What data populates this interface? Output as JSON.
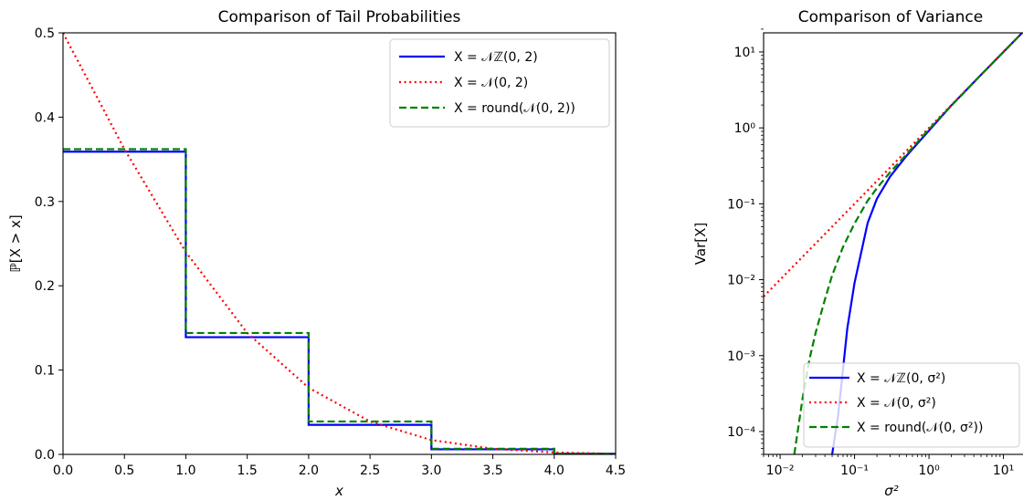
{
  "chart_data": [
    {
      "type": "line",
      "title": "Comparison of Tail Probabilities",
      "xlabel": "x",
      "ylabel": "ℙ[X > x]",
      "xlim": [
        0,
        4.5
      ],
      "ylim": [
        0,
        0.5
      ],
      "xticks": [
        "0.0",
        "0.5",
        "1.0",
        "1.5",
        "2.0",
        "2.5",
        "3.0",
        "3.5",
        "4.0",
        "4.5"
      ],
      "yticks": [
        "0.0",
        "0.1",
        "0.2",
        "0.3",
        "0.4",
        "0.5"
      ],
      "grid": false,
      "legend_position": "top-right",
      "series": [
        {
          "name": "X = 𝒩ℤ(0, 2)",
          "color": "#0000ff",
          "style": "solid",
          "step": true,
          "x": [
            0,
            1,
            2,
            3,
            4
          ],
          "values": [
            0.359,
            0.139,
            0.035,
            0.006,
            0.0007
          ]
        },
        {
          "name": "X = 𝒩(0, 2)",
          "color": "#ff0000",
          "style": "dotted",
          "step": false,
          "x": [
            0,
            0.5,
            1,
            1.5,
            2,
            2.5,
            3,
            3.5,
            4,
            4.5
          ],
          "values": [
            0.5,
            0.362,
            0.24,
            0.144,
            0.079,
            0.039,
            0.017,
            0.0067,
            0.0023,
            0.0007
          ]
        },
        {
          "name": "X = round(𝒩(0, 2))",
          "color": "#008000",
          "style": "dashed",
          "step": true,
          "x": [
            0,
            1,
            2,
            3,
            4
          ],
          "values": [
            0.362,
            0.144,
            0.039,
            0.0067,
            0.0007
          ]
        }
      ]
    },
    {
      "type": "line",
      "title": "Comparison of Variance",
      "xlabel": "σ²",
      "ylabel": "Var[X]",
      "xscale": "log",
      "yscale": "log",
      "xlim": [
        0.006,
        20
      ],
      "ylim": [
        5e-05,
        20
      ],
      "xticks": [
        "10⁻²",
        "10⁻¹",
        "10⁰",
        "10¹"
      ],
      "yticks": [
        "10⁻⁴",
        "10⁻³",
        "10⁻²",
        "10⁻¹",
        "10⁰",
        "10¹"
      ],
      "grid": false,
      "legend_position": "lower-right",
      "series": [
        {
          "name": "X = 𝒩ℤ(0, σ²)",
          "color": "#0000ff",
          "style": "solid",
          "x": [
            0.05,
            0.06,
            0.08,
            0.1,
            0.15,
            0.2,
            0.3,
            0.5,
            1,
            2,
            5,
            10,
            20
          ],
          "values": [
            5e-05,
            0.00016,
            0.0023,
            0.0091,
            0.056,
            0.117,
            0.228,
            0.43,
            0.92,
            1.98,
            5,
            10,
            20
          ]
        },
        {
          "name": "X = 𝒩(0, σ²)",
          "color": "#ff0000",
          "style": "dotted",
          "x": [
            0.006,
            0.01,
            0.1,
            1,
            10,
            20
          ],
          "values": [
            0.006,
            0.01,
            0.1,
            1,
            10,
            20
          ]
        },
        {
          "name": "X = round(𝒩(0, σ²))",
          "color": "#008000",
          "style": "dashed",
          "x": [
            0.0155,
            0.02,
            0.025,
            0.03,
            0.04,
            0.05,
            0.07,
            0.1,
            0.15,
            0.2,
            0.3,
            0.5,
            1,
            2,
            5,
            10,
            20
          ],
          "values": [
            5e-05,
            0.00027,
            0.00093,
            0.002,
            0.0055,
            0.0114,
            0.027,
            0.055,
            0.11,
            0.161,
            0.26,
            0.45,
            0.96,
            1.96,
            5,
            10,
            20
          ]
        }
      ]
    }
  ]
}
